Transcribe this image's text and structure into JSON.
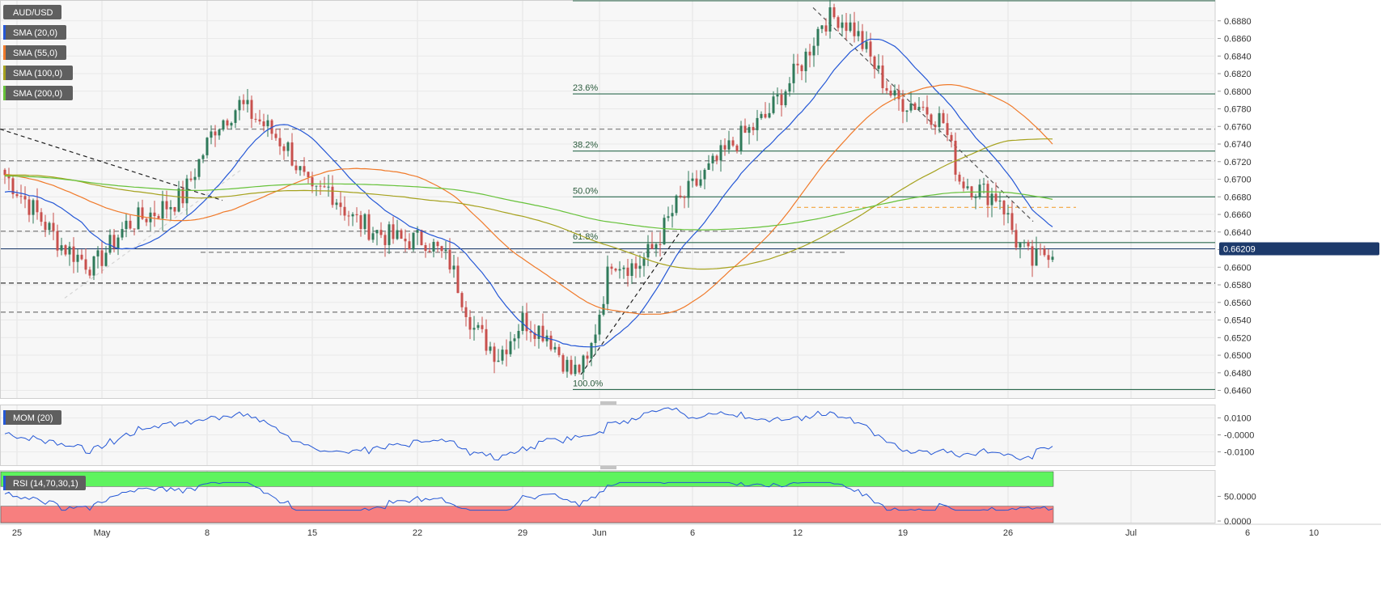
{
  "chart_data": {
    "type": "candlestick",
    "instrument": "AUD/USD",
    "current_price_label": "0.66209",
    "current_price": 0.66209,
    "x_tick_labels": [
      "25",
      "May",
      "8",
      "15",
      "22",
      "29",
      "Jun",
      "6",
      "12",
      "19",
      "26",
      "Jul",
      "6",
      "10"
    ],
    "main_panel": {
      "indicators": [
        {
          "label": "SMA (20,0)",
          "color": "#2457d6"
        },
        {
          "label": "SMA (55,0)",
          "color": "#f07a2a"
        },
        {
          "label": "SMA (100,0)",
          "color": "#a6a21e"
        },
        {
          "label": "SMA (200,0)",
          "color": "#67c23a"
        }
      ],
      "y_tick_labels": [
        "0.6880",
        "0.6860",
        "0.6840",
        "0.6820",
        "0.6800",
        "0.6780",
        "0.6760",
        "0.6740",
        "0.6720",
        "0.6700",
        "0.6680",
        "0.6660",
        "0.6640",
        "0.6620",
        "0.6600",
        "0.6580",
        "0.6560",
        "0.6540",
        "0.6520",
        "0.6500",
        "0.6480",
        "0.6460"
      ],
      "ylim": [
        0.6455,
        0.69
      ],
      "fibonacci_levels": [
        {
          "label": "23.6%",
          "value": 0.6797
        },
        {
          "label": "38.2%",
          "value": 0.6732
        },
        {
          "label": "50.0%",
          "value": 0.668
        },
        {
          "label": "61.8%",
          "value": 0.6628
        },
        {
          "label": "100.0%",
          "value": 0.6461
        }
      ],
      "horizontal_levels": [
        0.6757,
        0.6721,
        0.6641,
        0.6582,
        0.6549,
        0.6617
      ],
      "anchors": [
        {
          "x": 0,
          "price": 0.6705
        },
        {
          "x": 8,
          "price": 0.666
        },
        {
          "x": 14,
          "price": 0.6625
        },
        {
          "x": 22,
          "price": 0.66
        },
        {
          "x": 30,
          "price": 0.6648
        },
        {
          "x": 38,
          "price": 0.6665
        },
        {
          "x": 44,
          "price": 0.668
        },
        {
          "x": 52,
          "price": 0.676
        },
        {
          "x": 58,
          "price": 0.6785
        },
        {
          "x": 64,
          "price": 0.6762
        },
        {
          "x": 70,
          "price": 0.6735
        },
        {
          "x": 76,
          "price": 0.668
        },
        {
          "x": 80,
          "price": 0.669
        },
        {
          "x": 86,
          "price": 0.6655
        },
        {
          "x": 92,
          "price": 0.664
        },
        {
          "x": 98,
          "price": 0.663
        },
        {
          "x": 104,
          "price": 0.6632
        },
        {
          "x": 110,
          "price": 0.6605
        },
        {
          "x": 116,
          "price": 0.653
        },
        {
          "x": 122,
          "price": 0.65
        },
        {
          "x": 128,
          "price": 0.654
        },
        {
          "x": 134,
          "price": 0.6525
        },
        {
          "x": 140,
          "price": 0.648
        },
        {
          "x": 144,
          "price": 0.649
        },
        {
          "x": 150,
          "price": 0.661
        },
        {
          "x": 156,
          "price": 0.66
        },
        {
          "x": 160,
          "price": 0.662
        },
        {
          "x": 166,
          "price": 0.667
        },
        {
          "x": 172,
          "price": 0.67
        },
        {
          "x": 180,
          "price": 0.674
        },
        {
          "x": 188,
          "price": 0.677
        },
        {
          "x": 194,
          "price": 0.681
        },
        {
          "x": 198,
          "price": 0.684
        },
        {
          "x": 202,
          "price": 0.688
        },
        {
          "x": 206,
          "price": 0.6885
        },
        {
          "x": 210,
          "price": 0.687
        },
        {
          "x": 216,
          "price": 0.682
        },
        {
          "x": 220,
          "price": 0.679
        },
        {
          "x": 226,
          "price": 0.6785
        },
        {
          "x": 232,
          "price": 0.6765
        },
        {
          "x": 236,
          "price": 0.67
        },
        {
          "x": 242,
          "price": 0.6685
        },
        {
          "x": 246,
          "price": 0.668
        },
        {
          "x": 250,
          "price": 0.663
        },
        {
          "x": 254,
          "price": 0.6605
        },
        {
          "x": 258,
          "price": 0.662
        }
      ]
    },
    "momentum_panel": {
      "label": "MOM (20)",
      "y_tick_labels": [
        "0.0100",
        "-0.0000",
        "-0.0100"
      ],
      "ylim": [
        -0.016,
        0.016
      ]
    },
    "rsi_panel": {
      "label": "RSI (14,70,30,1)",
      "y_tick_labels": [
        "50.0000",
        "0.0000"
      ],
      "ylim": [
        0,
        100
      ],
      "overbought": 70,
      "oversold": 30
    }
  }
}
